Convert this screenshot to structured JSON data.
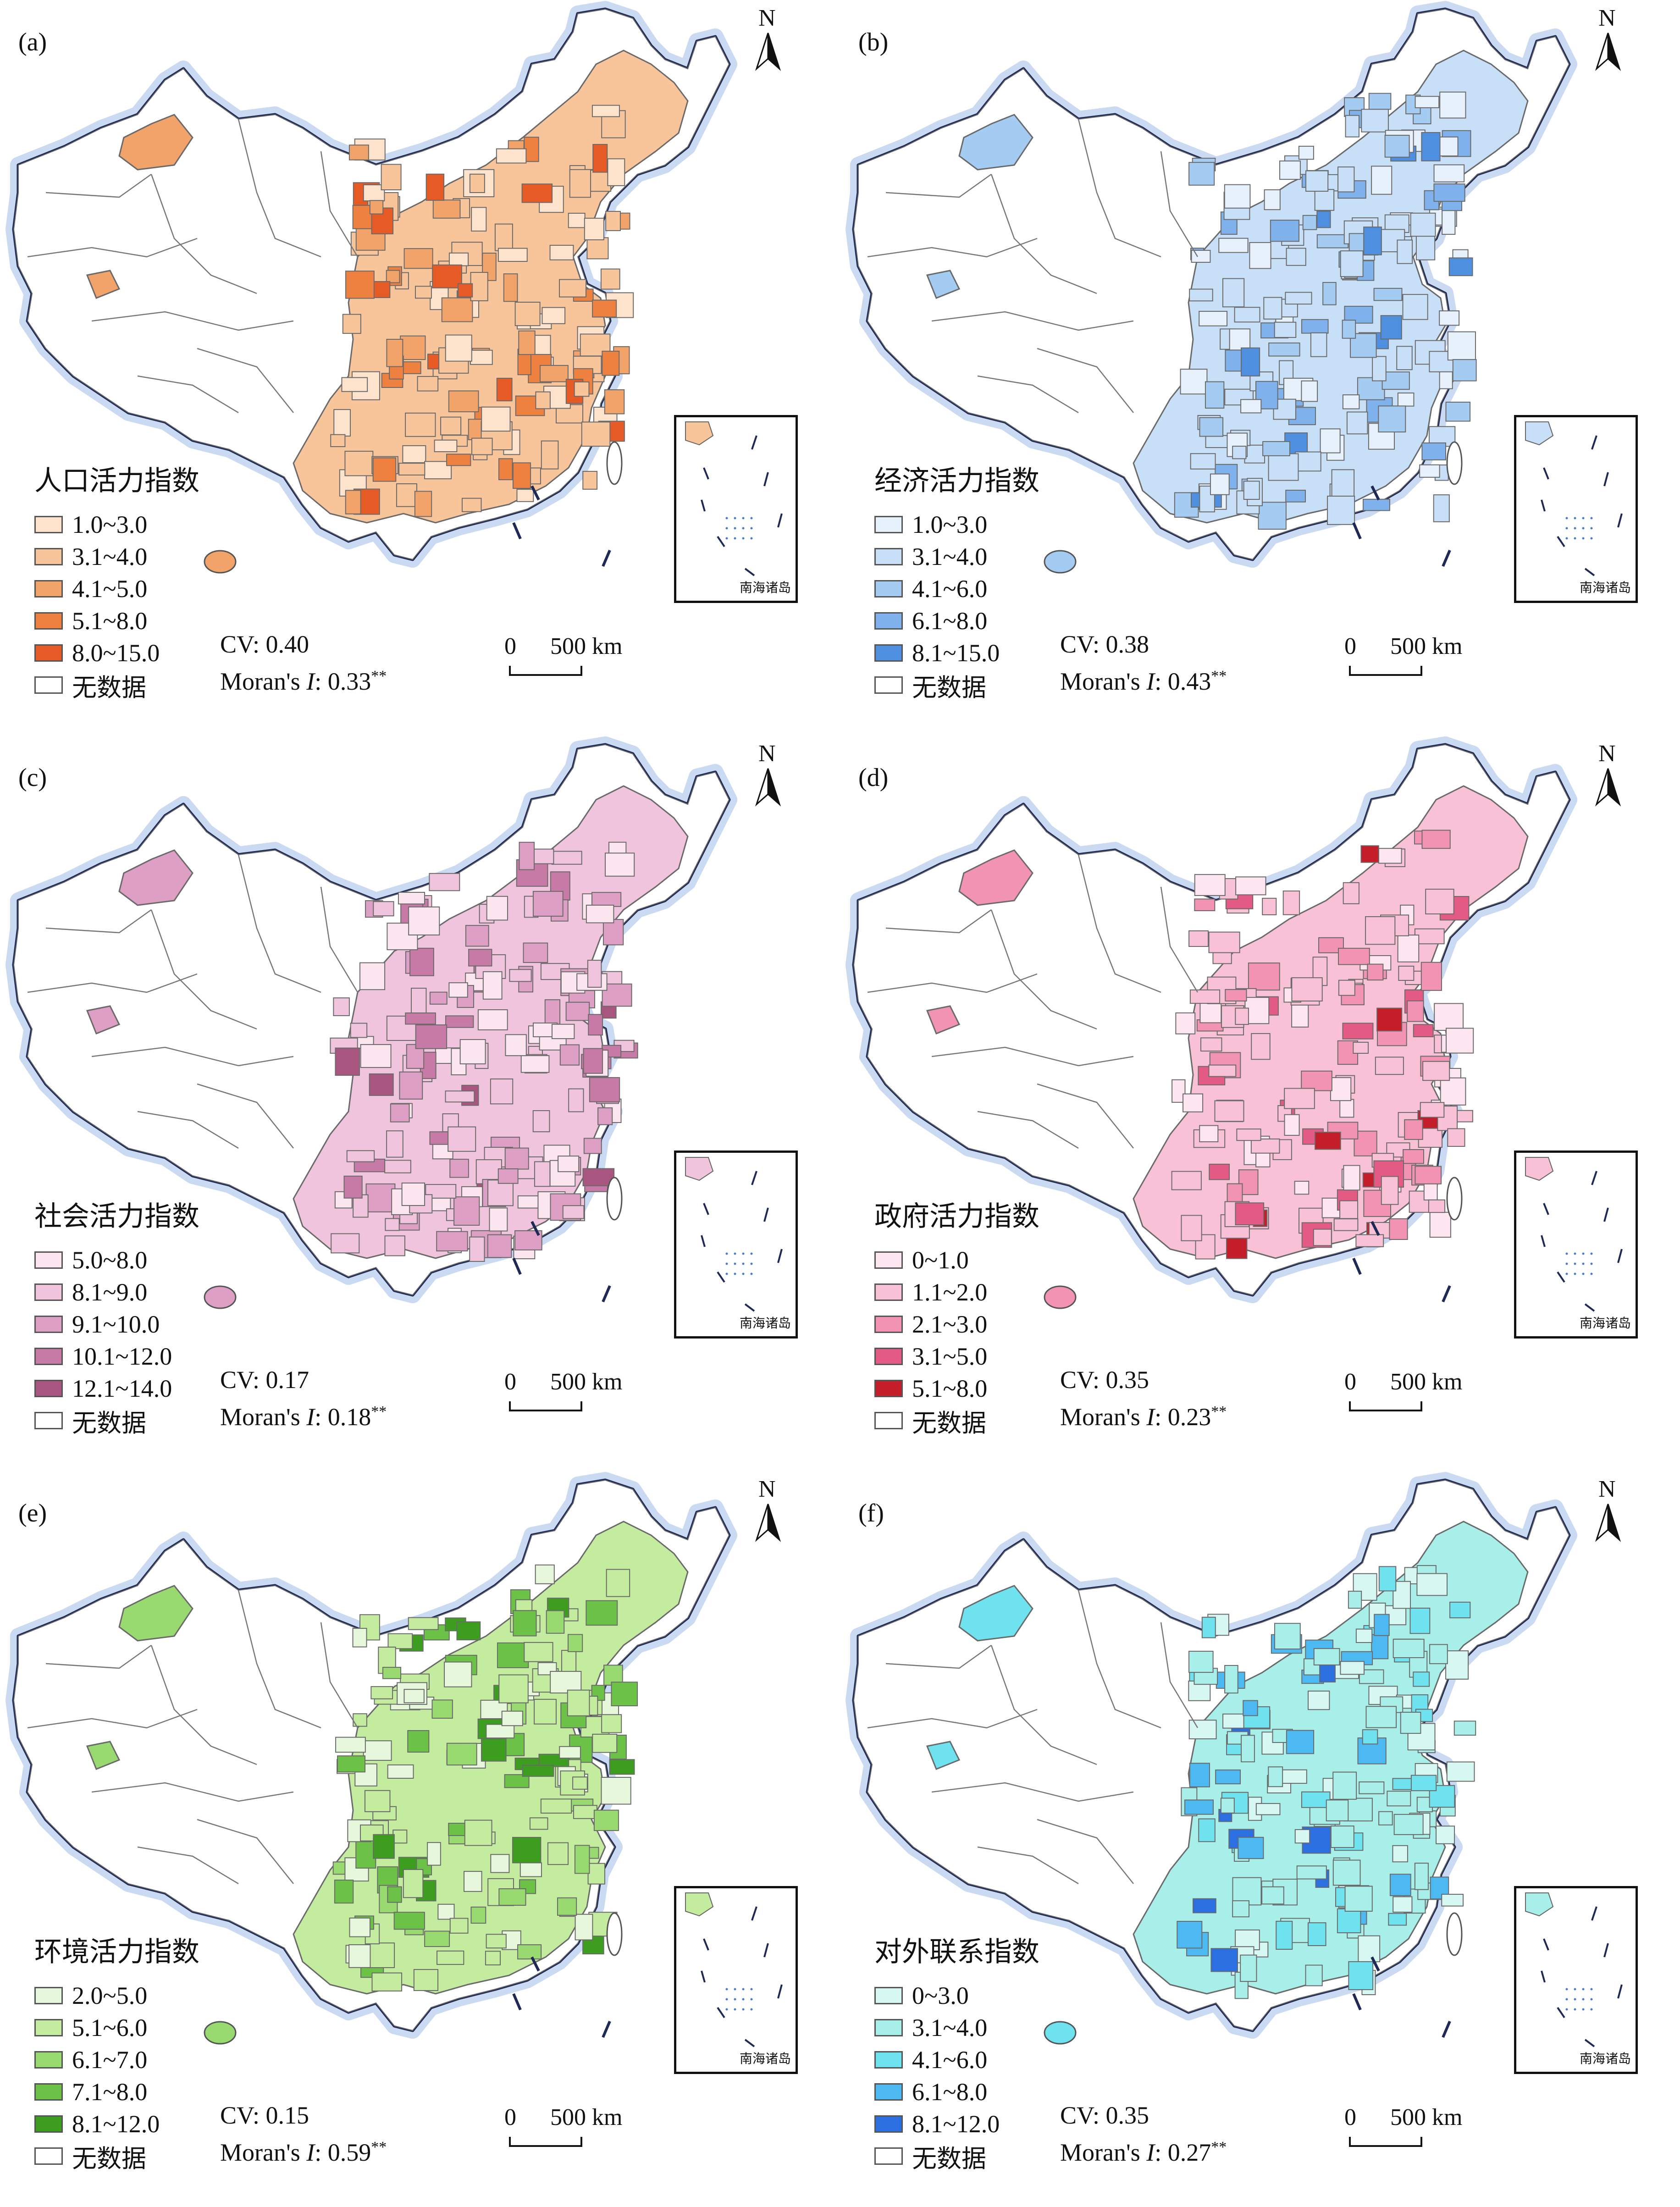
{
  "north_label": "N",
  "scale": {
    "zero": "0",
    "km": "500 km"
  },
  "inset_label": "南海诸岛",
  "nodata_color": "#ffffff",
  "panels": [
    {
      "label": "(a)",
      "title": "人口活力指数",
      "classes": [
        {
          "range": "1.0~3.0",
          "color": "#fde3cc"
        },
        {
          "range": "3.1~4.0",
          "color": "#f8c49a"
        },
        {
          "range": "4.1~5.0",
          "color": "#f2a36a"
        },
        {
          "range": "5.1~8.0",
          "color": "#ee8040"
        },
        {
          "range": "8.0~15.0",
          "color": "#e55a25"
        }
      ],
      "nodata": "无数据",
      "cv": "CV: 0.40",
      "moran_prefix": "Moran's ",
      "moran_i": "I",
      "moran_value": ": 0.33",
      "moran_sig": "**"
    },
    {
      "label": "(b)",
      "title": "经济活力指数",
      "classes": [
        {
          "range": "1.0~3.0",
          "color": "#e6f1fb"
        },
        {
          "range": "3.1~4.0",
          "color": "#c8e0f7"
        },
        {
          "range": "4.1~6.0",
          "color": "#a4cbf1"
        },
        {
          "range": "6.1~8.0",
          "color": "#7fb2ec"
        },
        {
          "range": "8.1~15.0",
          "color": "#4e8fe0"
        }
      ],
      "nodata": "无数据",
      "cv": "CV: 0.38",
      "moran_prefix": "Moran's ",
      "moran_i": "I",
      "moran_value": ": 0.43",
      "moran_sig": "**"
    },
    {
      "label": "(c)",
      "title": "社会活力指数",
      "classes": [
        {
          "range": "5.0~8.0",
          "color": "#fbe6f0"
        },
        {
          "range": "8.1~9.0",
          "color": "#efc4dc"
        },
        {
          "range": "9.1~10.0",
          "color": "#dd9fc3"
        },
        {
          "range": "10.1~12.0",
          "color": "#c77aa5"
        },
        {
          "range": "12.1~14.0",
          "color": "#a8567f"
        }
      ],
      "nodata": "无数据",
      "cv": "CV: 0.17",
      "moran_prefix": "Moran's ",
      "moran_i": "I",
      "moran_value": ": 0.18",
      "moran_sig": "**"
    },
    {
      "label": "(d)",
      "title": "政府活力指数",
      "classes": [
        {
          "range": "0~1.0",
          "color": "#fde6ef"
        },
        {
          "range": "1.1~2.0",
          "color": "#f8c1d6"
        },
        {
          "range": "2.1~3.0",
          "color": "#f293b4"
        },
        {
          "range": "3.1~5.0",
          "color": "#e35a85"
        },
        {
          "range": "5.1~8.0",
          "color": "#c41e2a"
        }
      ],
      "nodata": "无数据",
      "cv": "CV: 0.35",
      "moran_prefix": "Moran's ",
      "moran_i": "I",
      "moran_value": ": 0.23",
      "moran_sig": "**"
    },
    {
      "label": "(e)",
      "title": "环境活力指数",
      "classes": [
        {
          "range": "2.0~5.0",
          "color": "#e7f7dc"
        },
        {
          "range": "5.1~6.0",
          "color": "#c3ec9f"
        },
        {
          "range": "6.1~7.0",
          "color": "#98d970"
        },
        {
          "range": "7.1~8.0",
          "color": "#6cc247"
        },
        {
          "range": "8.1~12.0",
          "color": "#3d9d1e"
        }
      ],
      "nodata": "无数据",
      "cv": "CV: 0.15",
      "moran_prefix": "Moran's ",
      "moran_i": "I",
      "moran_value": ": 0.59",
      "moran_sig": "**"
    },
    {
      "label": "(f)",
      "title": "对外联系指数",
      "classes": [
        {
          "range": "0~3.0",
          "color": "#d6f7f2"
        },
        {
          "range": "3.1~4.0",
          "color": "#a7efe8"
        },
        {
          "range": "4.1~6.0",
          "color": "#6ee3ef"
        },
        {
          "range": "6.1~8.0",
          "color": "#4cb9f2"
        },
        {
          "range": "8.1~12.0",
          "color": "#2b6fe0"
        }
      ],
      "nodata": "无数据",
      "cv": "CV: 0.35",
      "moran_prefix": "Moran's ",
      "moran_i": "I",
      "moran_value": ": 0.27",
      "moran_sig": "**"
    }
  ]
}
